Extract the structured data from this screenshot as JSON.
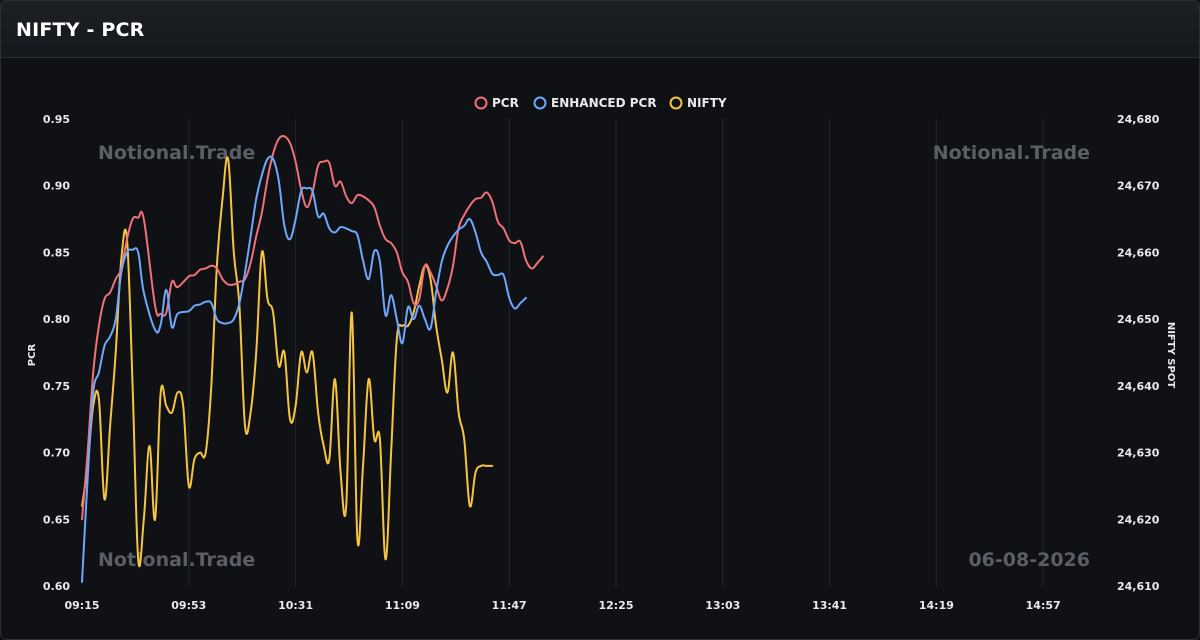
{
  "header": {
    "title": "NIFTY - PCR"
  },
  "watermarks": {
    "top_left": "Notional.Trade",
    "top_right": "Notional.Trade",
    "bottom_left": "Notional.Trade",
    "bottom_right": "06-08-2026"
  },
  "chart_data": {
    "type": "line",
    "grid": "vertical lines",
    "legend_position": "top-center",
    "x": [
      "09:15",
      "09:17",
      "09:19",
      "09:21",
      "09:23",
      "09:25",
      "09:27",
      "09:29",
      "09:31",
      "09:33",
      "09:35",
      "09:37",
      "09:39",
      "09:41",
      "09:43",
      "09:45",
      "09:47",
      "09:49",
      "09:51",
      "09:53",
      "09:55",
      "09:57",
      "09:59",
      "10:01",
      "10:03",
      "10:05",
      "10:07",
      "10:09",
      "10:11",
      "10:13",
      "10:15",
      "10:17",
      "10:19",
      "10:21",
      "10:23",
      "10:25",
      "10:27",
      "10:29",
      "10:31",
      "10:33",
      "10:35",
      "10:37",
      "10:39",
      "10:41",
      "10:43",
      "10:45",
      "10:47",
      "10:49",
      "10:51",
      "10:53",
      "10:55",
      "10:57",
      "10:59",
      "11:01",
      "11:03",
      "11:05",
      "11:07",
      "11:09",
      "11:11",
      "11:13",
      "11:15",
      "11:17",
      "11:19",
      "11:21",
      "11:23",
      "11:25",
      "11:27",
      "11:29",
      "11:31",
      "11:33",
      "11:35",
      "11:37",
      "11:39",
      "11:41",
      "11:43",
      "11:45",
      "11:47",
      "11:49",
      "11:51",
      "11:53",
      "11:55",
      "11:57",
      "11:59",
      "12:01",
      "12:03",
      "12:05",
      "12:07",
      "12:09",
      "12:11",
      "12:13",
      "12:15",
      "12:17",
      "12:19",
      "12:21",
      "12:23",
      "12:25",
      "12:27",
      "12:29",
      "12:31",
      "12:33",
      "12:35",
      "12:37",
      "12:39",
      "12:41",
      "12:43",
      "12:45",
      "12:47",
      "12:49",
      "12:51",
      "12:53",
      "12:55",
      "12:57",
      "12:59",
      "13:01",
      "13:03",
      "13:05",
      "13:07",
      "13:09",
      "13:11",
      "13:13",
      "13:15",
      "13:17",
      "13:19",
      "13:21",
      "13:23",
      "13:25",
      "13:27",
      "13:29",
      "13:31",
      "13:33",
      "13:35",
      "13:37",
      "13:39",
      "13:41",
      "13:43",
      "13:45",
      "13:47",
      "13:49",
      "13:51",
      "13:53",
      "13:55",
      "13:57",
      "13:59",
      "14:01",
      "14:03",
      "14:05",
      "14:07",
      "14:09",
      "14:11",
      "14:13",
      "14:15",
      "14:17",
      "14:19",
      "14:21",
      "14:23",
      "14:25",
      "14:27",
      "14:29",
      "14:31",
      "14:33",
      "14:35",
      "14:37",
      "14:39",
      "14:41",
      "14:43",
      "14:45",
      "14:47",
      "14:49",
      "14:51",
      "14:53",
      "14:55",
      "14:57",
      "14:59",
      "15:01",
      "15:03",
      "15:05",
      "15:07",
      "15:09",
      "15:11",
      "15:13",
      "15:15",
      "15:17",
      "15:19"
    ],
    "x_ticks": [
      "09:15",
      "09:53",
      "10:31",
      "11:09",
      "11:47",
      "12:25",
      "13:03",
      "13:41",
      "14:19",
      "14:57"
    ],
    "y_left": {
      "label": "PCR",
      "min": 0.6,
      "max": 0.95,
      "ticks": [
        "0.60",
        "0.65",
        "0.70",
        "0.75",
        "0.80",
        "0.85",
        "0.90",
        "0.95"
      ]
    },
    "y_right": {
      "label": "NIFTY SPOT",
      "min": 24610,
      "max": 24680,
      "ticks": [
        "24,610",
        "24,620",
        "24,630",
        "24,640",
        "24,650",
        "24,660",
        "24,670",
        "24,680"
      ]
    },
    "series": [
      {
        "name": "PCR",
        "axis": "left",
        "color": "#f07178",
        "keypoints": [
          [
            "09:15",
            0.65
          ],
          [
            "09:17",
            0.7
          ],
          [
            "09:19",
            0.76
          ],
          [
            "09:21",
            0.795
          ],
          [
            "09:23",
            0.815
          ],
          [
            "09:25",
            0.82
          ],
          [
            "09:27",
            0.83
          ],
          [
            "09:29",
            0.838
          ],
          [
            "09:31",
            0.86
          ],
          [
            "09:33",
            0.875
          ],
          [
            "09:35",
            0.876
          ],
          [
            "09:37",
            0.875
          ],
          [
            "09:41",
            0.81
          ],
          [
            "09:43",
            0.804
          ],
          [
            "09:45",
            0.805
          ],
          [
            "09:47",
            0.828
          ],
          [
            "09:49",
            0.824
          ],
          [
            "09:53",
            0.832
          ],
          [
            "09:55",
            0.833
          ],
          [
            "09:57",
            0.837
          ],
          [
            "09:59",
            0.838
          ],
          [
            "10:01",
            0.84
          ],
          [
            "10:03",
            0.838
          ],
          [
            "10:05",
            0.83
          ],
          [
            "10:07",
            0.826
          ],
          [
            "10:09",
            0.826
          ],
          [
            "10:11",
            0.828
          ],
          [
            "10:13",
            0.83
          ],
          [
            "10:15",
            0.842
          ],
          [
            "10:17",
            0.862
          ],
          [
            "10:19",
            0.88
          ],
          [
            "10:21",
            0.905
          ],
          [
            "10:23",
            0.924
          ],
          [
            "10:25",
            0.935
          ],
          [
            "10:27",
            0.937
          ],
          [
            "10:29",
            0.932
          ],
          [
            "10:31",
            0.918
          ],
          [
            "10:33",
            0.897
          ],
          [
            "10:35",
            0.884
          ],
          [
            "10:37",
            0.895
          ],
          [
            "10:39",
            0.915
          ],
          [
            "10:41",
            0.918
          ],
          [
            "10:43",
            0.917
          ],
          [
            "10:45",
            0.9
          ],
          [
            "10:47",
            0.903
          ],
          [
            "10:49",
            0.892
          ],
          [
            "10:51",
            0.887
          ],
          [
            "10:53",
            0.893
          ],
          [
            "10:55",
            0.892
          ],
          [
            "10:57",
            0.889
          ],
          [
            "10:59",
            0.884
          ],
          [
            "11:01",
            0.87
          ],
          [
            "11:03",
            0.86
          ],
          [
            "11:05",
            0.857
          ],
          [
            "11:07",
            0.85
          ],
          [
            "11:09",
            0.835
          ],
          [
            "11:11",
            0.828
          ],
          [
            "11:13",
            0.812
          ],
          [
            "11:15",
            0.815
          ],
          [
            "11:17",
            0.84
          ],
          [
            "11:19",
            0.835
          ],
          [
            "11:21",
            0.825
          ],
          [
            "11:23",
            0.814
          ],
          [
            "11:25",
            0.823
          ],
          [
            "11:27",
            0.84
          ],
          [
            "11:29",
            0.868
          ],
          [
            "11:31",
            0.878
          ],
          [
            "11:33",
            0.885
          ],
          [
            "11:35",
            0.89
          ],
          [
            "11:37",
            0.891
          ],
          [
            "11:39",
            0.895
          ],
          [
            "11:41",
            0.888
          ],
          [
            "11:43",
            0.873
          ],
          [
            "11:45",
            0.868
          ],
          [
            "11:47",
            0.859
          ],
          [
            "11:49",
            0.857
          ],
          [
            "11:51",
            0.858
          ],
          [
            "11:53",
            0.844
          ],
          [
            "11:55",
            0.838
          ],
          [
            "11:57",
            0.842
          ],
          [
            "11:59",
            0.847
          ]
        ]
      },
      {
        "name": "ENHANCED PCR",
        "axis": "left",
        "color": "#6ea8fe",
        "keypoints": [
          [
            "09:15",
            0.603
          ],
          [
            "09:17",
            0.68
          ],
          [
            "09:19",
            0.745
          ],
          [
            "09:21",
            0.76
          ],
          [
            "09:23",
            0.78
          ],
          [
            "09:25",
            0.787
          ],
          [
            "09:27",
            0.8
          ],
          [
            "09:29",
            0.835
          ],
          [
            "09:31",
            0.85
          ],
          [
            "09:33",
            0.852
          ],
          [
            "09:35",
            0.85
          ],
          [
            "09:37",
            0.82
          ],
          [
            "09:41",
            0.792
          ],
          [
            "09:43",
            0.796
          ],
          [
            "09:45",
            0.822
          ],
          [
            "09:47",
            0.794
          ],
          [
            "09:49",
            0.804
          ],
          [
            "09:53",
            0.806
          ],
          [
            "09:55",
            0.81
          ],
          [
            "09:57",
            0.811
          ],
          [
            "09:59",
            0.813
          ],
          [
            "10:01",
            0.812
          ],
          [
            "10:03",
            0.8
          ],
          [
            "10:05",
            0.797
          ],
          [
            "10:07",
            0.797
          ],
          [
            "10:09",
            0.8
          ],
          [
            "10:11",
            0.812
          ],
          [
            "10:13",
            0.835
          ],
          [
            "10:15",
            0.862
          ],
          [
            "10:17",
            0.89
          ],
          [
            "10:19",
            0.908
          ],
          [
            "10:21",
            0.92
          ],
          [
            "10:23",
            0.92
          ],
          [
            "10:25",
            0.904
          ],
          [
            "10:27",
            0.87
          ],
          [
            "10:29",
            0.86
          ],
          [
            "10:31",
            0.875
          ],
          [
            "10:33",
            0.896
          ],
          [
            "10:35",
            0.898
          ],
          [
            "10:37",
            0.896
          ],
          [
            "10:39",
            0.877
          ],
          [
            "10:41",
            0.879
          ],
          [
            "10:43",
            0.868
          ],
          [
            "10:45",
            0.865
          ],
          [
            "10:47",
            0.869
          ],
          [
            "10:49",
            0.868
          ],
          [
            "10:51",
            0.866
          ],
          [
            "10:53",
            0.863
          ],
          [
            "10:55",
            0.844
          ],
          [
            "10:57",
            0.83
          ],
          [
            "10:59",
            0.851
          ],
          [
            "11:01",
            0.843
          ],
          [
            "11:03",
            0.803
          ],
          [
            "11:05",
            0.818
          ],
          [
            "11:07",
            0.8
          ],
          [
            "11:09",
            0.782
          ],
          [
            "11:11",
            0.809
          ],
          [
            "11:13",
            0.8
          ],
          [
            "11:15",
            0.81
          ],
          [
            "11:17",
            0.8
          ],
          [
            "11:19",
            0.793
          ],
          [
            "11:21",
            0.82
          ],
          [
            "11:23",
            0.843
          ],
          [
            "11:25",
            0.855
          ],
          [
            "11:27",
            0.862
          ],
          [
            "11:29",
            0.867
          ],
          [
            "11:31",
            0.87
          ],
          [
            "11:33",
            0.875
          ],
          [
            "11:35",
            0.865
          ],
          [
            "11:37",
            0.85
          ],
          [
            "11:39",
            0.843
          ],
          [
            "11:41",
            0.834
          ],
          [
            "11:43",
            0.833
          ],
          [
            "11:45",
            0.833
          ],
          [
            "11:47",
            0.816
          ],
          [
            "11:49",
            0.808
          ],
          [
            "11:51",
            0.812
          ],
          [
            "11:53",
            0.816
          ]
        ]
      },
      {
        "name": "NIFTY",
        "axis": "right",
        "color": "#f5c542",
        "keypoints": [
          [
            "09:15",
            24622
          ],
          [
            "09:17",
            24628
          ],
          [
            "09:19",
            24637
          ],
          [
            "09:21",
            24638
          ],
          [
            "09:23",
            24623
          ],
          [
            "09:25",
            24634
          ],
          [
            "09:27",
            24645
          ],
          [
            "09:29",
            24659
          ],
          [
            "09:31",
            24662
          ],
          [
            "09:33",
            24640
          ],
          [
            "09:35",
            24614
          ],
          [
            "09:37",
            24620
          ],
          [
            "09:39",
            24631
          ],
          [
            "09:41",
            24620
          ],
          [
            "09:43",
            24639
          ],
          [
            "09:45",
            24637
          ],
          [
            "09:47",
            24636
          ],
          [
            "09:49",
            24639
          ],
          [
            "09:51",
            24637
          ],
          [
            "09:53",
            24625
          ],
          [
            "09:55",
            24629
          ],
          [
            "09:57",
            24630
          ],
          [
            "09:59",
            24630
          ],
          [
            "10:01",
            24640
          ],
          [
            "10:03",
            24658
          ],
          [
            "10:05",
            24668
          ],
          [
            "10:07",
            24674
          ],
          [
            "10:09",
            24660
          ],
          [
            "10:11",
            24652
          ],
          [
            "10:13",
            24634
          ],
          [
            "10:15",
            24636
          ],
          [
            "10:17",
            24645
          ],
          [
            "10:19",
            24660
          ],
          [
            "10:21",
            24653
          ],
          [
            "10:23",
            24651
          ],
          [
            "10:25",
            24643
          ],
          [
            "10:27",
            24645
          ],
          [
            "10:29",
            24635
          ],
          [
            "10:31",
            24637
          ],
          [
            "10:33",
            24645
          ],
          [
            "10:35",
            24642
          ],
          [
            "10:37",
            24645
          ],
          [
            "10:39",
            24636
          ],
          [
            "10:41",
            24631
          ],
          [
            "10:43",
            24629
          ],
          [
            "10:45",
            24641
          ],
          [
            "10:47",
            24627
          ],
          [
            "10:49",
            24622
          ],
          [
            "10:51",
            24651
          ],
          [
            "10:53",
            24617
          ],
          [
            "10:55",
            24628
          ],
          [
            "10:57",
            24641
          ],
          [
            "10:59",
            24632
          ],
          [
            "11:01",
            24632
          ],
          [
            "11:03",
            24614
          ],
          [
            "11:05",
            24630
          ],
          [
            "11:07",
            24647
          ],
          [
            "11:09",
            24649
          ],
          [
            "11:11",
            24649
          ],
          [
            "11:13",
            24651
          ],
          [
            "11:15",
            24655
          ],
          [
            "11:17",
            24658
          ],
          [
            "11:19",
            24656
          ],
          [
            "11:21",
            24649
          ],
          [
            "11:23",
            24644
          ],
          [
            "11:25",
            24639
          ],
          [
            "11:27",
            24645
          ],
          [
            "11:29",
            24636
          ],
          [
            "11:31",
            24632
          ],
          [
            "11:33",
            24622
          ],
          [
            "11:35",
            24627
          ],
          [
            "11:37",
            24628
          ],
          [
            "11:39",
            24628
          ],
          [
            "11:41",
            24628
          ]
        ]
      }
    ]
  }
}
